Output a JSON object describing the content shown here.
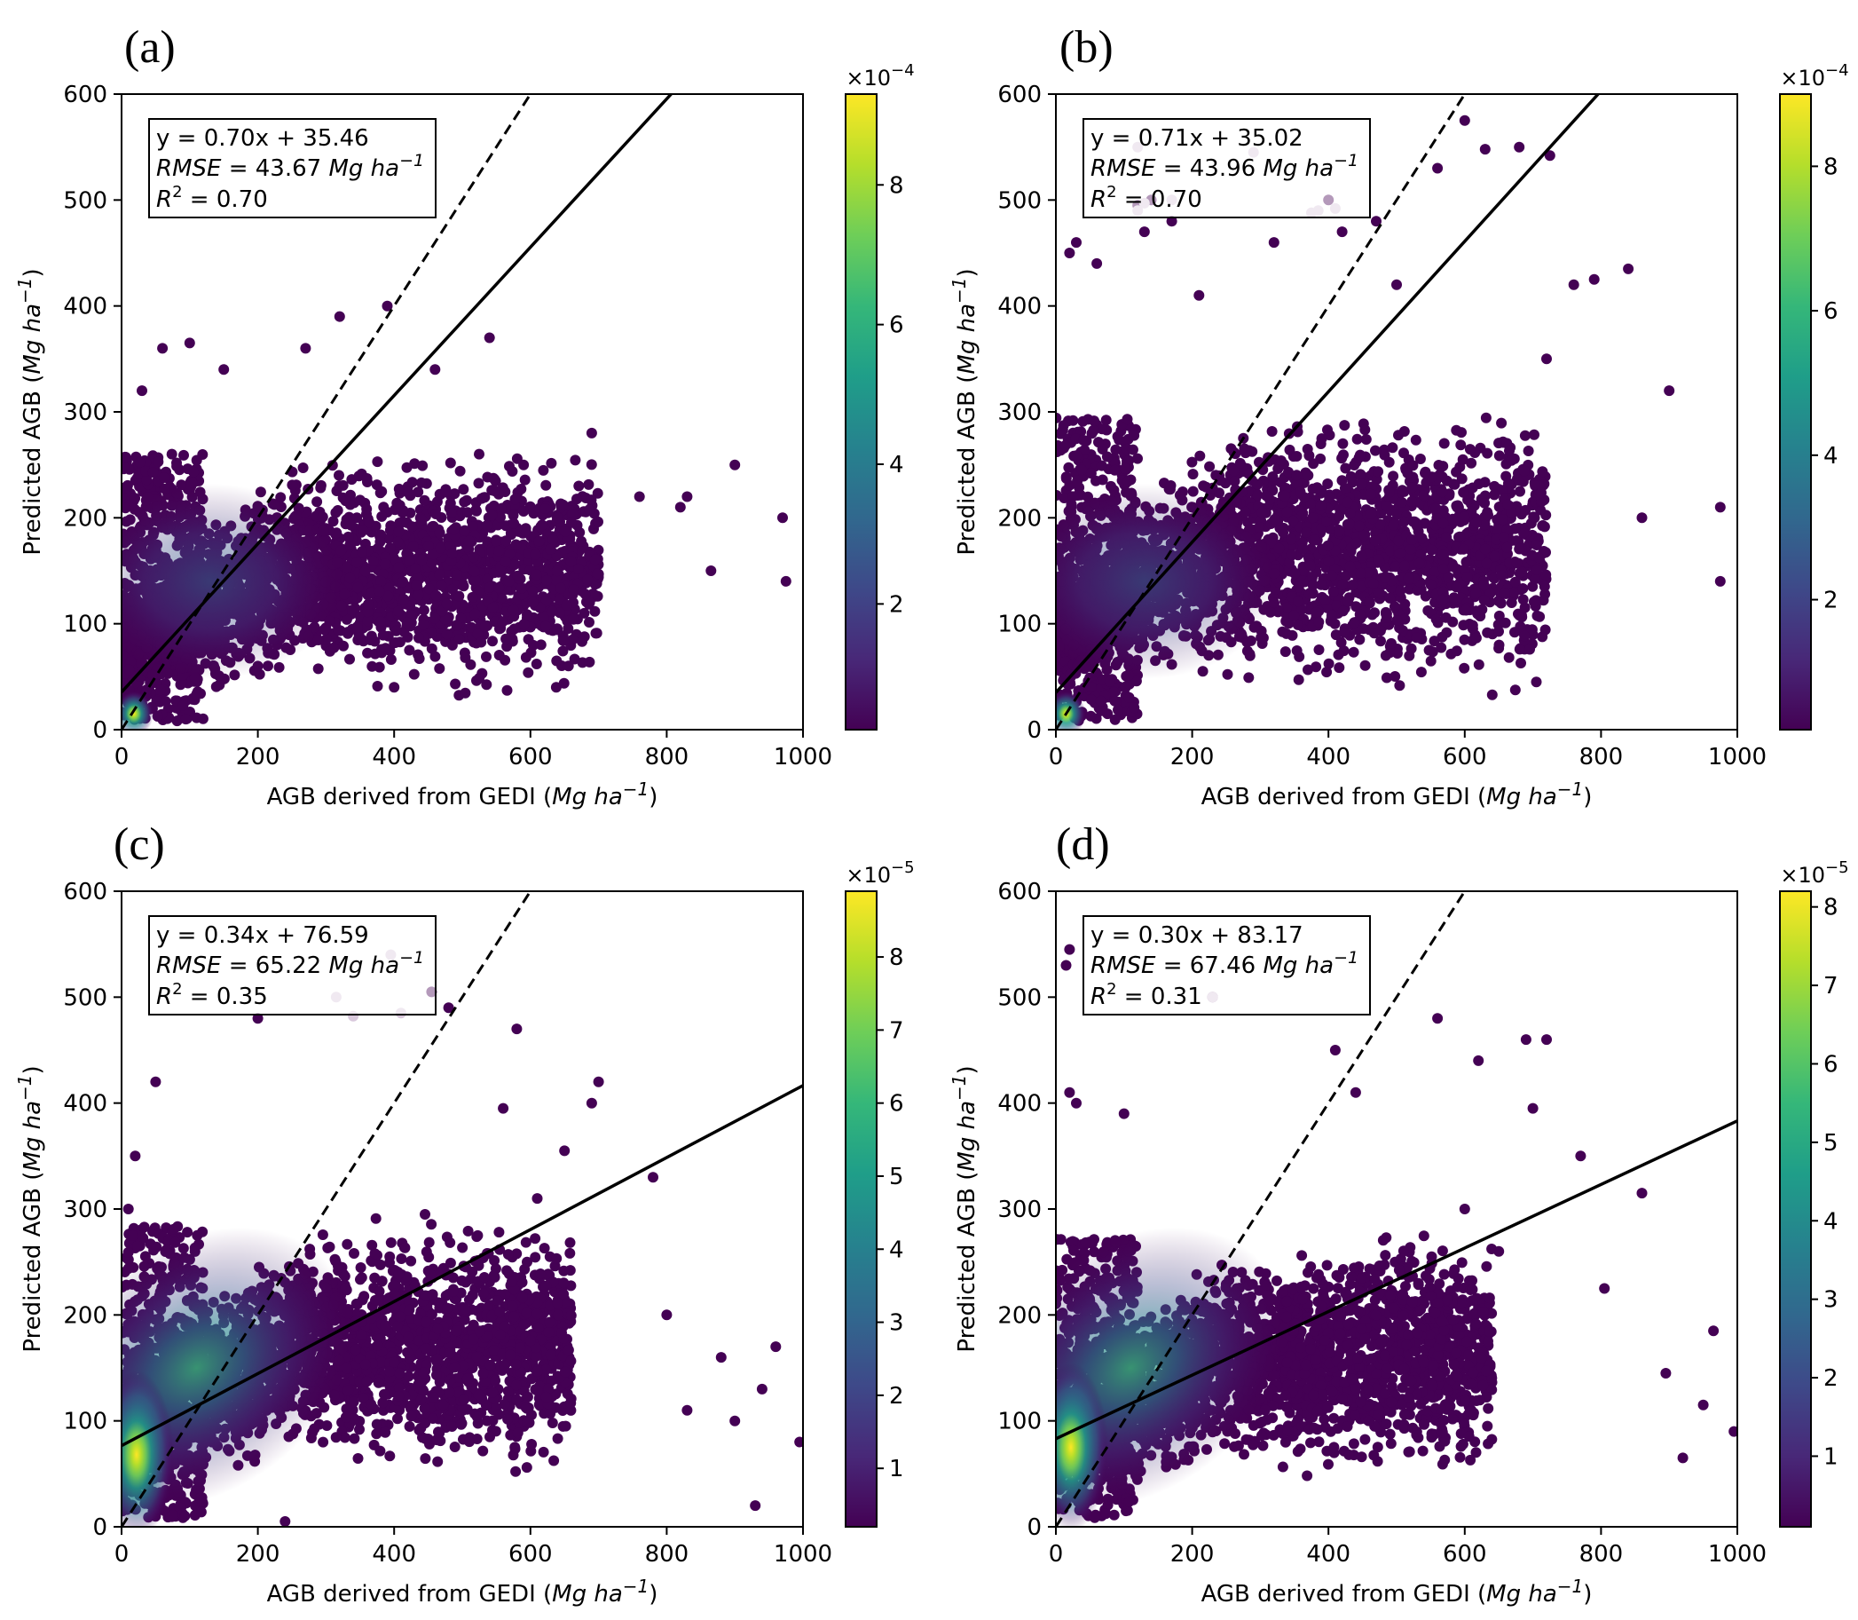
{
  "figure": {
    "colormap": [
      "#440154",
      "#482878",
      "#3e4989",
      "#31688e",
      "#26828e",
      "#1f9e89",
      "#35b779",
      "#6ece58",
      "#b5de2b",
      "#fde725"
    ],
    "line_color": "#000000"
  },
  "chart_data": [
    {
      "panel": "(a)",
      "type": "scatter",
      "xlabel": "AGB derived from GEDI (Mg ha⁻¹)",
      "ylabel": "Predicted AGB (Mg ha⁻¹)",
      "xlim": [
        0,
        1000
      ],
      "ylim": [
        0,
        600
      ],
      "xticks": [
        "0",
        "200",
        "400",
        "600",
        "800",
        "1000"
      ],
      "yticks": [
        "0",
        "100",
        "200",
        "300",
        "400",
        "500",
        "600"
      ],
      "fit": {
        "slope": 0.7,
        "intercept": 35.46
      },
      "stats": {
        "equation": "y = 0.70x + 35.46",
        "rmse": "RMSE = 43.67 Mg ha⁻¹",
        "r2": "R² = 0.70"
      },
      "colorbar": {
        "exponent": "×10⁻⁴",
        "min": 0.2,
        "max": 9.3,
        "ticks": [
          "2",
          "4",
          "6",
          "8"
        ],
        "tick_values": [
          2,
          4,
          6,
          8
        ]
      },
      "hotspot": {
        "x": 18,
        "y": 15
      },
      "cloud": {
        "xmin": 0,
        "xmax": 700,
        "center_y": 150,
        "spread_y": 115
      },
      "outliers": [
        [
          970,
          200
        ],
        [
          975,
          140
        ],
        [
          820,
          210
        ],
        [
          900,
          250
        ],
        [
          830,
          220
        ],
        [
          100,
          365
        ],
        [
          150,
          340
        ],
        [
          270,
          360
        ],
        [
          460,
          340
        ],
        [
          690,
          280
        ],
        [
          760,
          220
        ],
        [
          865,
          150
        ],
        [
          200,
          60
        ],
        [
          400,
          40
        ],
        [
          640,
          200
        ],
        [
          590,
          250
        ],
        [
          540,
          370
        ],
        [
          390,
          400
        ],
        [
          320,
          390
        ],
        [
          60,
          360
        ],
        [
          30,
          320
        ]
      ]
    },
    {
      "panel": "(b)",
      "type": "scatter",
      "xlabel": "AGB derived from GEDI (Mg ha⁻¹)",
      "ylabel": "Predicted AGB (Mg ha⁻¹)",
      "xlim": [
        0,
        1000
      ],
      "ylim": [
        0,
        600
      ],
      "xticks": [
        "0",
        "200",
        "400",
        "600",
        "800",
        "1000"
      ],
      "yticks": [
        "0",
        "100",
        "200",
        "300",
        "400",
        "500",
        "600"
      ],
      "fit": {
        "slope": 0.71,
        "intercept": 35.02
      },
      "stats": {
        "equation": "y = 0.71x + 35.02",
        "rmse": "RMSE = 43.96 Mg ha⁻¹",
        "r2": "R² = 0.70"
      },
      "colorbar": {
        "exponent": "×10⁻⁴",
        "min": 0.2,
        "max": 9.0,
        "ticks": [
          "2",
          "4",
          "6",
          "8"
        ],
        "tick_values": [
          2,
          4,
          6,
          8
        ]
      },
      "hotspot": {
        "x": 15,
        "y": 15
      },
      "cloud": {
        "xmin": 0,
        "xmax": 720,
        "center_y": 170,
        "spread_y": 130
      },
      "outliers": [
        [
          600,
          575
        ],
        [
          680,
          550
        ],
        [
          725,
          542
        ],
        [
          630,
          548
        ],
        [
          560,
          530
        ],
        [
          975,
          210
        ],
        [
          975,
          140
        ],
        [
          840,
          435
        ],
        [
          790,
          425
        ],
        [
          760,
          420
        ],
        [
          900,
          320
        ],
        [
          860,
          200
        ],
        [
          320,
          460
        ],
        [
          420,
          470
        ],
        [
          170,
          480
        ],
        [
          130,
          470
        ],
        [
          20,
          450
        ],
        [
          30,
          460
        ],
        [
          60,
          440
        ],
        [
          210,
          410
        ],
        [
          720,
          350
        ],
        [
          500,
          420
        ],
        [
          400,
          500
        ],
        [
          470,
          480
        ],
        [
          120,
          495
        ],
        [
          140,
          500
        ]
      ],
      "faded_points": [
        [
          120,
          550
        ],
        [
          290,
          545
        ],
        [
          385,
          490
        ],
        [
          410,
          492
        ],
        [
          375,
          488
        ],
        [
          120,
          490
        ],
        [
          130,
          497
        ],
        [
          170,
          500
        ]
      ]
    },
    {
      "panel": "(c)",
      "type": "scatter",
      "xlabel": "AGB derived from GEDI (Mg ha⁻¹)",
      "ylabel": "Predicted AGB (Mg ha⁻¹)",
      "xlim": [
        0,
        1000
      ],
      "ylim": [
        0,
        600
      ],
      "xticks": [
        "0",
        "200",
        "400",
        "600",
        "800",
        "1000"
      ],
      "yticks": [
        "0",
        "100",
        "200",
        "300",
        "400",
        "500",
        "600"
      ],
      "fit": {
        "slope": 0.34,
        "intercept": 76.59
      },
      "stats": {
        "equation": "y = 0.34x + 76.59",
        "rmse": "RMSE = 65.22 Mg ha⁻¹",
        "r2": "R² = 0.35"
      },
      "colorbar": {
        "exponent": "×10⁻⁵",
        "min": 0.2,
        "max": 8.9,
        "ticks": [
          "1",
          "2",
          "3",
          "4",
          "5",
          "6",
          "7",
          "8"
        ],
        "tick_values": [
          1,
          2,
          3,
          4,
          5,
          6,
          7,
          8
        ]
      },
      "hotspot": {
        "x": 22,
        "y": 68
      },
      "cloud": {
        "xmin": 0,
        "xmax": 660,
        "center_y": 170,
        "spread_y": 120
      },
      "outliers": [
        [
          995,
          80
        ],
        [
          930,
          20
        ],
        [
          960,
          170
        ],
        [
          940,
          130
        ],
        [
          900,
          100
        ],
        [
          880,
          160
        ],
        [
          830,
          110
        ],
        [
          800,
          200
        ],
        [
          700,
          420
        ],
        [
          690,
          400
        ],
        [
          650,
          355
        ],
        [
          780,
          330
        ],
        [
          610,
          310
        ],
        [
          560,
          395
        ],
        [
          595,
          250
        ],
        [
          480,
          490
        ],
        [
          580,
          470
        ],
        [
          455,
          505
        ],
        [
          50,
          420
        ],
        [
          20,
          350
        ],
        [
          10,
          300
        ],
        [
          240,
          5
        ],
        [
          200,
          480
        ]
      ],
      "faded_points": [
        [
          395,
          540
        ],
        [
          315,
          500
        ],
        [
          410,
          485
        ],
        [
          340,
          482
        ]
      ]
    },
    {
      "panel": "(d)",
      "type": "scatter",
      "xlabel": "AGB derived from GEDI (Mg ha⁻¹)",
      "ylabel": "Predicted AGB (Mg ha⁻¹)",
      "xlim": [
        0,
        1000
      ],
      "ylim": [
        0,
        600
      ],
      "xticks": [
        "0",
        "200",
        "400",
        "600",
        "800",
        "1000"
      ],
      "yticks": [
        "0",
        "100",
        "200",
        "300",
        "400",
        "500",
        "600"
      ],
      "fit": {
        "slope": 0.3,
        "intercept": 83.17
      },
      "stats": {
        "equation": "y = 0.30x + 83.17",
        "rmse": "RMSE = 67.46 Mg ha⁻¹",
        "r2": "R² = 0.31"
      },
      "colorbar": {
        "exponent": "×10⁻⁵",
        "min": 0.1,
        "max": 8.2,
        "ticks": [
          "1",
          "2",
          "3",
          "4",
          "5",
          "6",
          "7",
          "8"
        ],
        "tick_values": [
          1,
          2,
          3,
          4,
          5,
          6,
          7,
          8
        ]
      },
      "hotspot": {
        "x": 22,
        "y": 75
      },
      "cloud": {
        "xmin": 0,
        "xmax": 640,
        "center_y": 160,
        "spread_y": 115
      },
      "outliers": [
        [
          995,
          90
        ],
        [
          965,
          185
        ],
        [
          950,
          115
        ],
        [
          920,
          65
        ],
        [
          895,
          145
        ],
        [
          860,
          315
        ],
        [
          805,
          225
        ],
        [
          770,
          350
        ],
        [
          720,
          460
        ],
        [
          700,
          395
        ],
        [
          690,
          460
        ],
        [
          620,
          440
        ],
        [
          560,
          480
        ],
        [
          20,
          545
        ],
        [
          15,
          530
        ],
        [
          20,
          410
        ],
        [
          30,
          400
        ],
        [
          100,
          390
        ],
        [
          230,
          500
        ],
        [
          410,
          450
        ],
        [
          440,
          410
        ],
        [
          600,
          300
        ],
        [
          650,
          260
        ]
      ],
      "faded_points": [
        [
          230,
          500
        ]
      ]
    }
  ]
}
